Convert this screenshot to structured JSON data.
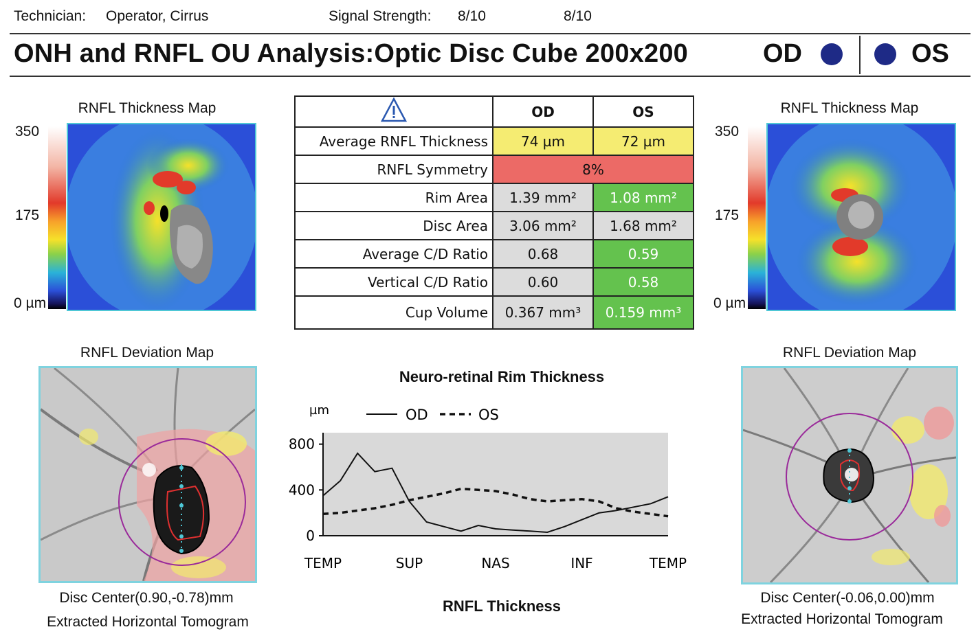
{
  "header": {
    "technician_label": "Technician:",
    "technician_value": "Operator, Cirrus",
    "signal_label": "Signal Strength:",
    "signal_od": "8/10",
    "signal_os": "8/10",
    "title": "ONH and RNFL OU Analysis:Optic Disc Cube 200x200",
    "od_label": "OD",
    "os_label": "OS"
  },
  "thickness_map": {
    "title_od": "RNFL Thickness Map",
    "title_os": "RNFL Thickness Map",
    "scale_max": "350",
    "scale_mid": "175",
    "scale_min": "0 µm"
  },
  "table": {
    "header_od": "OD",
    "header_os": "OS",
    "rows": [
      {
        "label": "Average RNFL Thickness",
        "od": "74 µm",
        "os": "72 µm"
      },
      {
        "label": "RNFL Symmetry",
        "combined": "8%"
      },
      {
        "label": "Rim Area",
        "od": "1.39 mm²",
        "os": "1.08 mm²"
      },
      {
        "label": "Disc Area",
        "od": "3.06 mm²",
        "os": "1.68 mm²"
      },
      {
        "label": "Average C/D Ratio",
        "od": "0.68",
        "os": "0.59"
      },
      {
        "label": "Vertical C/D Ratio",
        "od": "0.60",
        "os": "0.58"
      },
      {
        "label": "Cup Volume",
        "od": "0.367 mm³",
        "os": "0.159 mm³"
      }
    ]
  },
  "deviation_map": {
    "title_od": "RNFL Deviation Map",
    "title_os": "RNFL Deviation Map",
    "disc_center_od": "Disc Center(0.90,-0.78)mm",
    "disc_center_os": "Disc Center(-0.06,0.00)mm",
    "tomogram_od": "Extracted Horizontal Tomogram",
    "tomogram_os": "Extracted Horizontal Tomogram"
  },
  "colors": {
    "yellow": "#f5ec72",
    "red": "#ec6a66",
    "grey": "#dcdcdc",
    "green": "#64c24e",
    "eye_dot": "#1e2a86",
    "frame": "#4ec7d6"
  },
  "chart_data": {
    "type": "line",
    "title": "Neuro-retinal Rim Thickness",
    "subtitle": "RNFL Thickness",
    "ylabel": "µm",
    "ylim": [
      0,
      900
    ],
    "yticks": [
      0,
      400,
      800
    ],
    "xticks": [
      "TEMP",
      "SUP",
      "NAS",
      "INF",
      "TEMP"
    ],
    "x": [
      0,
      0.05,
      0.1,
      0.15,
      0.2,
      0.25,
      0.3,
      0.35,
      0.4,
      0.45,
      0.5,
      0.55,
      0.6,
      0.65,
      0.7,
      0.75,
      0.8,
      0.85,
      0.9,
      0.95,
      1.0
    ],
    "series": [
      {
        "name": "OD",
        "style": "solid",
        "values": [
          350,
          480,
          720,
          560,
          590,
          300,
          120,
          80,
          40,
          90,
          60,
          50,
          40,
          30,
          80,
          140,
          200,
          220,
          250,
          280,
          340
        ]
      },
      {
        "name": "OS",
        "style": "dashed",
        "values": [
          190,
          200,
          220,
          240,
          270,
          310,
          340,
          370,
          410,
          400,
          390,
          360,
          320,
          300,
          310,
          320,
          300,
          240,
          210,
          190,
          170
        ]
      }
    ]
  }
}
